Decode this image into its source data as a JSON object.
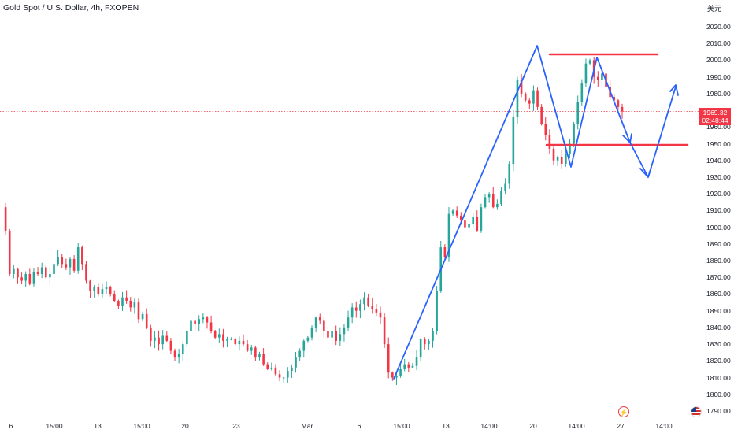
{
  "header": {
    "title": "Gold Spot / U.S. Dollar, 4h, FXOPEN",
    "currency": "美元"
  },
  "price_tag": {
    "price": "1969.32",
    "countdown": "02:48:44"
  },
  "colors": {
    "up": "#26a69a",
    "down": "#f23645",
    "drawing_blue": "#2962ff",
    "level_red": "#f23645",
    "price_line": "#f23645"
  },
  "icons": [
    "lightning-icon",
    "us-flag-icon"
  ],
  "chart_data": {
    "type": "candlestick",
    "title": "Gold Spot / U.S. Dollar, 4h, FXOPEN",
    "ylim": [
      1785,
      2026
    ],
    "current_price": 1969.32,
    "y_ticks": [
      1790,
      1800,
      1810,
      1820,
      1830,
      1840,
      1850,
      1860,
      1870,
      1880,
      1890,
      1900,
      1910,
      1920,
      1930,
      1940,
      1950,
      1960,
      1970,
      1980,
      1990,
      2000,
      2010,
      2020
    ],
    "x_ticks": [
      "6",
      "15:00",
      "13",
      "15:00",
      "20",
      "23",
      "Mar",
      "6",
      "15:00",
      "13",
      "14:00",
      "20",
      "14:00",
      "27",
      "14:00"
    ],
    "path_closes": [
      1912,
      1898,
      1872,
      1875,
      1870,
      1868,
      1872,
      1866,
      1873,
      1872,
      1876,
      1870,
      1872,
      1878,
      1882,
      1878,
      1876,
      1881,
      1874,
      1888,
      1878,
      1868,
      1862,
      1864,
      1860,
      1863,
      1864,
      1860,
      1856,
      1853,
      1858,
      1856,
      1852,
      1855,
      1845,
      1848,
      1840,
      1832,
      1834,
      1830,
      1835,
      1832,
      1826,
      1822,
      1824,
      1830,
      1838,
      1844,
      1842,
      1845,
      1846,
      1843,
      1838,
      1834,
      1836,
      1832,
      1833,
      1833,
      1830,
      1832,
      1830,
      1826,
      1828,
      1822,
      1824,
      1818,
      1815,
      1816,
      1812,
      1810,
      1810,
      1814,
      1816,
      1822,
      1826,
      1832,
      1834,
      1840,
      1846,
      1844,
      1838,
      1834,
      1838,
      1832,
      1836,
      1840,
      1846,
      1852,
      1850,
      1854,
      1858,
      1853,
      1851,
      1849,
      1846,
      1830,
      1813,
      1810,
      1811,
      1815,
      1818,
      1816,
      1817,
      1822,
      1833,
      1830,
      1832,
      1838,
      1862,
      1888,
      1882,
      1908,
      1910,
      1907,
      1904,
      1900,
      1902,
      1906,
      1898,
      1912,
      1918,
      1920,
      1912,
      1914,
      1922,
      1926,
      1938,
      1966,
      1988,
      1980,
      1976,
      1974,
      1982,
      1972,
      1962,
      1955,
      1947,
      1940,
      1942,
      1938,
      1944,
      1950,
      1962,
      1975,
      1986,
      1998,
      2000,
      1990,
      1988,
      1992,
      1984,
      1978,
      1976,
      1972,
      1969.32
    ]
  }
}
